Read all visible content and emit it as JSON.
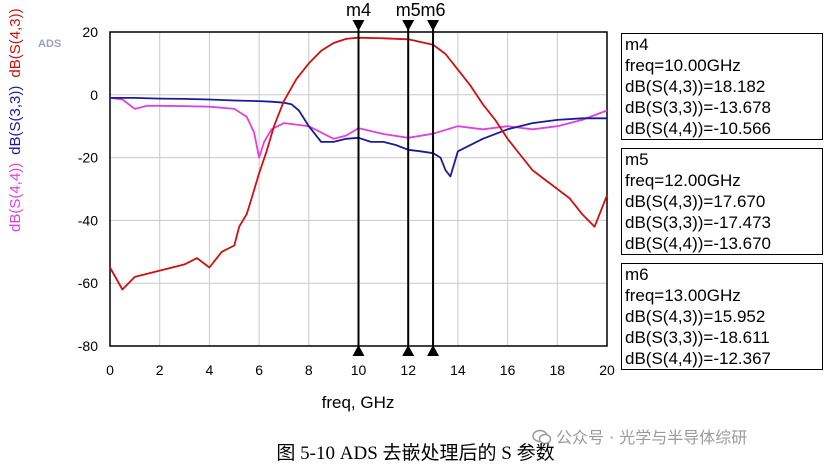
{
  "chart_data": {
    "type": "line",
    "software_tag": "ADS",
    "xlabel": "freq, GHz",
    "xlim": [
      0,
      20
    ],
    "ylim": [
      -80,
      20
    ],
    "x_ticks": [
      0,
      2,
      4,
      6,
      8,
      10,
      12,
      14,
      16,
      18,
      20
    ],
    "y_ticks": [
      20,
      0,
      -20,
      -40,
      -60,
      -80
    ],
    "grid": true,
    "series": [
      {
        "name": "dB(S(4,4))",
        "color": "#e040e0",
        "x": [
          0,
          0.5,
          1,
          1.5,
          2,
          3,
          4,
          5,
          5.5,
          5.8,
          6,
          6.2,
          6.5,
          7,
          7.5,
          8,
          8.5,
          9,
          9.5,
          10,
          11,
          12,
          13,
          14,
          15,
          16,
          17,
          18,
          19,
          20
        ],
        "values": [
          -1,
          -1.5,
          -4.5,
          -3.5,
          -3.5,
          -3.6,
          -3.8,
          -4.5,
          -7,
          -12,
          -20,
          -15,
          -11,
          -9,
          -9.5,
          -10,
          -12,
          -14,
          -13,
          -10.6,
          -12.5,
          -13.7,
          -12.4,
          -10,
          -11,
          -10,
          -11,
          -10,
          -8,
          -5
        ]
      },
      {
        "name": "dB(S(3,3))",
        "color": "#1a1a9c",
        "x": [
          0,
          1,
          2,
          3,
          4,
          5,
          6,
          6.5,
          7,
          7.3,
          7.6,
          8,
          8.5,
          9,
          9.5,
          10,
          10.5,
          11,
          11.5,
          12,
          12.5,
          13,
          13.3,
          13.5,
          13.7,
          14,
          15,
          16,
          17,
          18,
          19,
          20
        ],
        "values": [
          -1,
          -1,
          -1.2,
          -1.3,
          -1.5,
          -1.8,
          -2,
          -2.2,
          -2.5,
          -3,
          -5,
          -10,
          -15,
          -15,
          -14,
          -13.7,
          -15,
          -15,
          -16,
          -17.5,
          -18,
          -18.6,
          -20,
          -24,
          -26,
          -18,
          -14,
          -11,
          -9,
          -8,
          -7.5,
          -7.5
        ]
      },
      {
        "name": "dB(S(4,3))",
        "color": "#d01010",
        "x": [
          0,
          0.5,
          1,
          1.5,
          2,
          2.5,
          3,
          3.5,
          4,
          4.5,
          5,
          5.2,
          5.5,
          5.7,
          6,
          6.3,
          6.6,
          7,
          7.5,
          8,
          8.5,
          9,
          9.5,
          10,
          11,
          12,
          13,
          13.5,
          14,
          14.5,
          15,
          15.5,
          16,
          16.5,
          17,
          17.5,
          18,
          18.5,
          19,
          19.5,
          20
        ],
        "values": [
          -55,
          -62,
          -58,
          -57,
          -56,
          -55,
          -54,
          -52,
          -55,
          -50,
          -48,
          -42,
          -38,
          -33,
          -25,
          -18,
          -10,
          -2,
          5,
          10,
          14,
          16.5,
          17.8,
          18.182,
          18,
          17.67,
          15.952,
          13,
          8,
          3,
          -3,
          -8,
          -14,
          -19,
          -24,
          -27,
          -30,
          -33,
          -38,
          -42,
          -32
        ]
      }
    ]
  },
  "markers": [
    {
      "label": "m4",
      "freq": 10,
      "lines": [
        "m4",
        "freq=10.00GHz",
        "dB(S(4,3))=18.182",
        "dB(S(3,3))=-13.678",
        "dB(S(4,4))=-10.566"
      ]
    },
    {
      "label": "m5",
      "freq": 12,
      "lines": [
        "m5",
        "freq=12.00GHz",
        "dB(S(4,3))=17.670",
        "dB(S(3,3))=-17.473",
        "dB(S(4,4))=-13.670"
      ]
    },
    {
      "label": "m6",
      "freq": 13,
      "lines": [
        "m6",
        "freq=13.00GHz",
        "dB(S(4,3))=15.952",
        "dB(S(3,3))=-18.611",
        "dB(S(4,4))=-12.367"
      ]
    }
  ],
  "caption": "图 5-10 ADS 去嵌处理后的 S 参数",
  "watermark": "公众号 · 光学与半导体综研"
}
